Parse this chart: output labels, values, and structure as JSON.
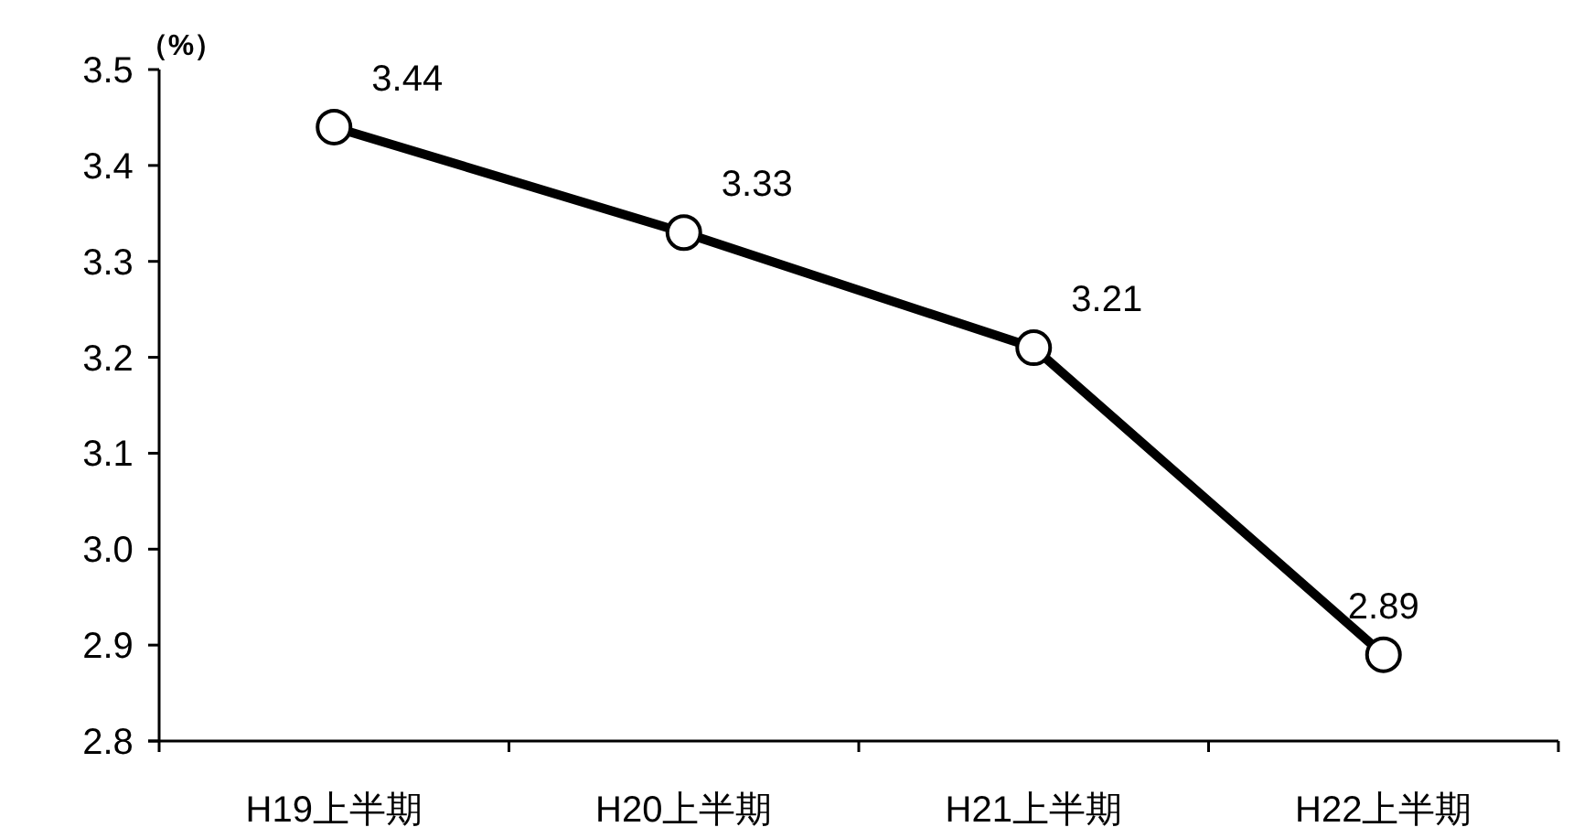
{
  "chart_data": {
    "type": "line",
    "ylabel": "（%）",
    "categories": [
      "H19上半期",
      "H20上半期",
      "H21上半期",
      "H22上半期"
    ],
    "series": [
      {
        "color": "#000000",
        "values": [
          3.44,
          3.33,
          3.21,
          2.89
        ]
      }
    ],
    "ylim": [
      2.8,
      3.5
    ],
    "yticks": [
      "3.5",
      "3.4",
      "3.3",
      "3.2",
      "3.1",
      "3.0",
      "2.9",
      "2.8"
    ],
    "data_labels": true,
    "marker": "circle",
    "line_style": "solid"
  }
}
